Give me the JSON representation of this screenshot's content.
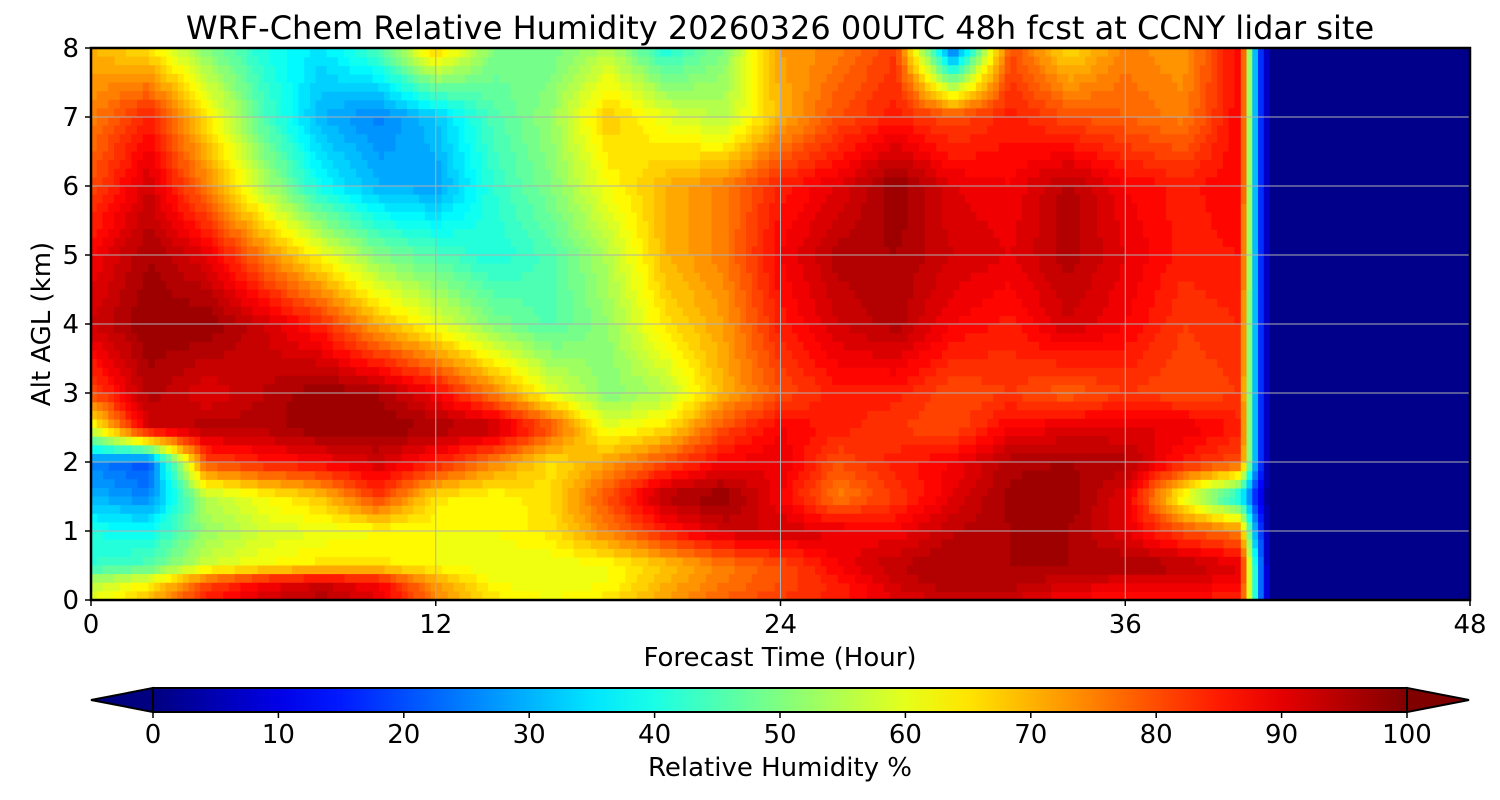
{
  "chart_data": {
    "type": "heatmap",
    "title": "WRF-Chem Relative Humidity 20260326 00UTC 48h fcst at CCNY lidar site",
    "xlabel": "Forecast Time (Hour)",
    "ylabel": "Alt AGL (km)",
    "xlim": [
      0,
      48
    ],
    "ylim": [
      0,
      8
    ],
    "x_ticks": [
      0,
      12,
      24,
      36,
      48
    ],
    "y_ticks": [
      0,
      1,
      2,
      3,
      4,
      5,
      6,
      7,
      8
    ],
    "grid": true,
    "colormap": "jet",
    "colorbar": {
      "label": "Relative Humidity %",
      "range": [
        0,
        100
      ],
      "ticks": [
        0,
        10,
        20,
        30,
        40,
        50,
        60,
        70,
        80,
        90,
        100
      ],
      "extend": "both",
      "orientation": "horizontal"
    },
    "alt_km": [
      0,
      0.25,
      0.5,
      1,
      1.5,
      2,
      2.5,
      3,
      4,
      5,
      6,
      7,
      8
    ],
    "hours": [
      0,
      2,
      4,
      6,
      8,
      10,
      12,
      14,
      16,
      18,
      20,
      22,
      24,
      26,
      28,
      30,
      32,
      34,
      36,
      38,
      40,
      40.5,
      41,
      41.5,
      42,
      44,
      46,
      48
    ],
    "rh_pct": [
      [
        60,
        70,
        85,
        92,
        95,
        90,
        75,
        65,
        62,
        65,
        72,
        78,
        82,
        85,
        90,
        93,
        92,
        88,
        85,
        85,
        85,
        40,
        0,
        0,
        0,
        0,
        0,
        0
      ],
      [
        55,
        62,
        80,
        88,
        92,
        88,
        72,
        62,
        60,
        62,
        70,
        76,
        80,
        85,
        92,
        96,
        95,
        92,
        90,
        90,
        88,
        40,
        0,
        0,
        0,
        0,
        0,
        0
      ],
      [
        42,
        45,
        58,
        62,
        65,
        65,
        62,
        60,
        60,
        62,
        68,
        75,
        80,
        88,
        94,
        96,
        96,
        96,
        96,
        95,
        90,
        40,
        0,
        0,
        0,
        0,
        0,
        0
      ],
      [
        40,
        38,
        52,
        58,
        60,
        62,
        62,
        62,
        65,
        75,
        85,
        92,
        92,
        90,
        88,
        94,
        96,
        96,
        90,
        80,
        75,
        30,
        0,
        0,
        0,
        0,
        0,
        0
      ],
      [
        30,
        25,
        55,
        62,
        68,
        82,
        65,
        62,
        66,
        80,
        95,
        98,
        88,
        75,
        82,
        90,
        97,
        98,
        90,
        60,
        35,
        15,
        0,
        0,
        0,
        0,
        0,
        0
      ],
      [
        25,
        20,
        80,
        85,
        88,
        92,
        85,
        75,
        65,
        72,
        80,
        88,
        90,
        80,
        85,
        88,
        95,
        96,
        95,
        85,
        80,
        30,
        0,
        0,
        0,
        0,
        0,
        0
      ],
      [
        60,
        92,
        95,
        95,
        98,
        98,
        96,
        94,
        80,
        60,
        65,
        80,
        88,
        85,
        82,
        80,
        88,
        90,
        90,
        90,
        85,
        30,
        0,
        0,
        0,
        0,
        0,
        0
      ],
      [
        80,
        95,
        90,
        94,
        98,
        96,
        88,
        75,
        60,
        50,
        55,
        70,
        80,
        85,
        85,
        80,
        82,
        78,
        82,
        80,
        82,
        30,
        0,
        0,
        0,
        0,
        0,
        0
      ],
      [
        92,
        98,
        98,
        92,
        84,
        70,
        60,
        50,
        45,
        52,
        65,
        72,
        85,
        92,
        95,
        88,
        85,
        92,
        88,
        82,
        84,
        30,
        0,
        0,
        0,
        0,
        0,
        0
      ],
      [
        88,
        96,
        90,
        75,
        62,
        50,
        45,
        40,
        45,
        55,
        70,
        75,
        88,
        95,
        96,
        92,
        90,
        95,
        90,
        85,
        86,
        30,
        0,
        0,
        0,
        0,
        0,
        0
      ],
      [
        80,
        92,
        75,
        55,
        38,
        30,
        28,
        42,
        50,
        62,
        70,
        75,
        85,
        90,
        98,
        90,
        88,
        95,
        88,
        85,
        88,
        30,
        0,
        0,
        0,
        0,
        0,
        0
      ],
      [
        75,
        85,
        65,
        45,
        30,
        25,
        32,
        45,
        52,
        68,
        60,
        55,
        70,
        80,
        85,
        80,
        85,
        80,
        78,
        75,
        88,
        30,
        0,
        0,
        0,
        0,
        0,
        0
      ],
      [
        70,
        65,
        50,
        40,
        35,
        45,
        68,
        50,
        48,
        55,
        40,
        50,
        72,
        75,
        82,
        20,
        80,
        65,
        75,
        72,
        88,
        30,
        0,
        0,
        0,
        0,
        0,
        0
      ]
    ]
  }
}
